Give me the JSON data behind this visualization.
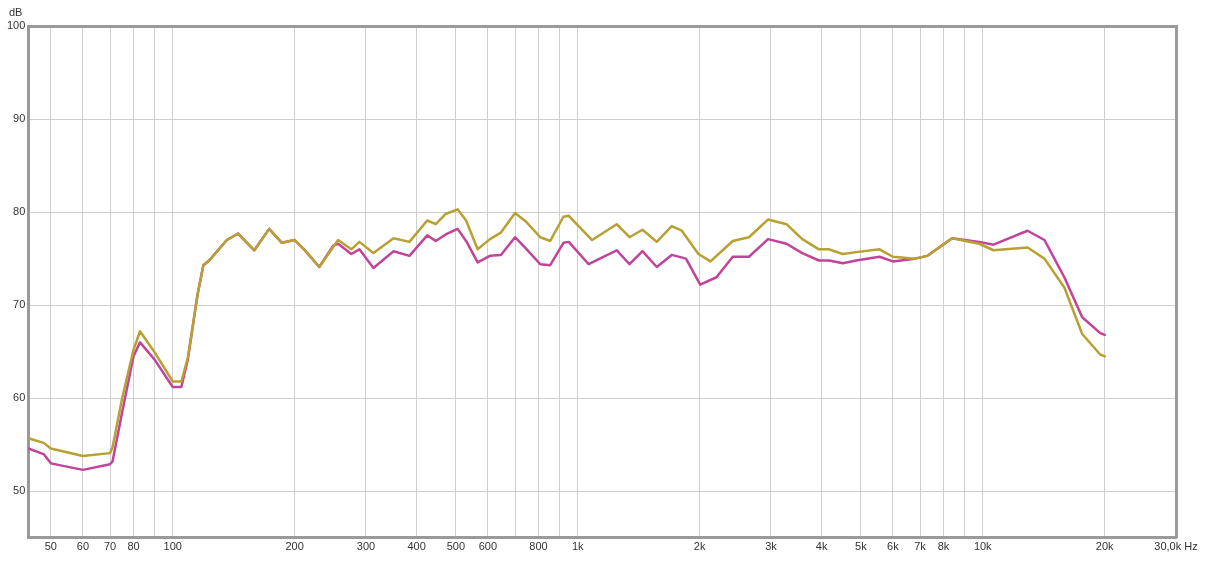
{
  "chart_data": {
    "type": "line",
    "ylabel": "dB",
    "log": "x",
    "grid": true,
    "legend": false,
    "marker": "none",
    "line_style": "solid",
    "xlim": [
      44,
      30000
    ],
    "ylim": [
      45,
      100
    ],
    "xticks": [
      50,
      60,
      70,
      80,
      {
        "value": 90,
        "label": null
      },
      100,
      200,
      300,
      400,
      500,
      600,
      {
        "value": 700,
        "label": null
      },
      800,
      {
        "value": 900,
        "label": null
      },
      {
        "value": 1000,
        "label": "1k"
      },
      {
        "value": 2000,
        "label": "2k"
      },
      {
        "value": 3000,
        "label": "3k"
      },
      {
        "value": 4000,
        "label": "4k"
      },
      {
        "value": 5000,
        "label": "5k"
      },
      {
        "value": 6000,
        "label": "6k"
      },
      {
        "value": 7000,
        "label": "7k"
      },
      {
        "value": 8000,
        "label": "8k"
      },
      {
        "value": 9000,
        "label": null
      },
      {
        "value": 10000,
        "label": "10k"
      },
      {
        "value": 20000,
        "label": "20k"
      },
      {
        "value": 30000,
        "label": "30,0k Hz"
      }
    ],
    "yticks": [
      50,
      60,
      70,
      80,
      90,
      100
    ],
    "series": [
      {
        "color": "#b8a032",
        "x": [
          44,
          48,
          50,
          60,
          70,
          71,
          75,
          80,
          83,
          90,
          100,
          105,
          109,
          115,
          119,
          123,
          136,
          145,
          159,
          173,
          186,
          200,
          211,
          230,
          256,
          276,
          289,
          313,
          351,
          384,
          425,
          446,
          472,
          505,
          530,
          566,
          607,
          646,
          700,
          748,
          808,
          855,
          922,
          950,
          1085,
          1248,
          1342,
          1445,
          1567,
          1706,
          1807,
          1986,
          2127,
          2414,
          2647,
          2950,
          3276,
          3584,
          3940,
          4175,
          4510,
          4870,
          5560,
          6000,
          6800,
          7300,
          8400,
          9800,
          10630,
          12900,
          14200,
          15900,
          17600,
          19500,
          20000
        ],
        "values": [
          55.7,
          55.2,
          54.6,
          53.8,
          54.1,
          54.7,
          60,
          65.2,
          67.2,
          65,
          61.8,
          61.8,
          64.4,
          71,
          74.3,
          74.8,
          77,
          77.7,
          75.9,
          78.2,
          76.7,
          77,
          76,
          74.1,
          77,
          76,
          76.8,
          75.6,
          77.2,
          76.8,
          79.1,
          78.7,
          79.8,
          80.3,
          79.1,
          76,
          77.1,
          77.8,
          79.9,
          78.9,
          77.3,
          76.9,
          79.5,
          79.6,
          77,
          78.7,
          77.3,
          78.1,
          76.8,
          78.5,
          78,
          75.5,
          74.7,
          76.9,
          77.3,
          79.2,
          78.7,
          77.1,
          76,
          76,
          75.5,
          75.7,
          76,
          75.2,
          75,
          75.3,
          77.2,
          76.6,
          75.9,
          76.2,
          75,
          71.9,
          66.9,
          64.7,
          64.5
        ]
      },
      {
        "color": "#c0449a",
        "x": [
          44,
          48,
          50,
          60,
          70,
          71,
          75,
          80,
          83,
          90,
          100,
          105,
          109,
          115,
          119,
          123,
          136,
          145,
          159,
          173,
          186,
          200,
          211,
          230,
          249,
          256,
          276,
          289,
          313,
          351,
          384,
          425,
          446,
          472,
          505,
          530,
          566,
          607,
          646,
          700,
          748,
          808,
          855,
          922,
          950,
          1064,
          1248,
          1342,
          1445,
          1567,
          1706,
          1850,
          2006,
          2200,
          2414,
          2647,
          2950,
          3276,
          3584,
          3940,
          4175,
          4510,
          4870,
          5560,
          6000,
          6800,
          7300,
          8400,
          9800,
          10630,
          12900,
          14200,
          15900,
          17600,
          19500,
          20000
        ],
        "values": [
          54.6,
          54,
          53,
          52.3,
          52.9,
          53.2,
          58.5,
          64.5,
          66,
          64.2,
          61.2,
          61.2,
          64.2,
          71,
          74.3,
          74.8,
          77,
          77.7,
          75.9,
          78.2,
          76.7,
          77,
          76,
          74.1,
          76.4,
          76.6,
          75.5,
          76,
          74,
          75.8,
          75.3,
          77.5,
          76.9,
          77.6,
          78.2,
          76.9,
          74.6,
          75.3,
          75.4,
          77.3,
          76,
          74.4,
          74.3,
          76.7,
          76.8,
          74.4,
          75.9,
          74.4,
          75.8,
          74.1,
          75.4,
          75,
          72.2,
          73,
          75.2,
          75.2,
          77.1,
          76.6,
          75.6,
          74.8,
          74.8,
          74.5,
          74.8,
          75.2,
          74.7,
          75,
          75.3,
          77.2,
          76.8,
          76.5,
          78,
          77,
          73,
          68.7,
          67,
          66.8
        ]
      }
    ]
  }
}
